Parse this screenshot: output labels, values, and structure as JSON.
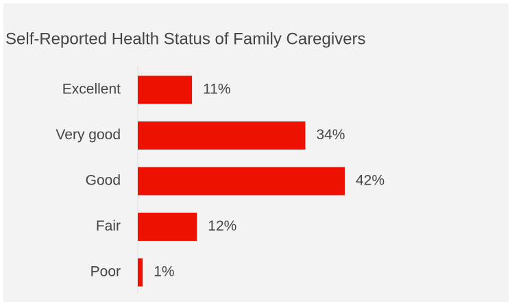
{
  "chart_data": {
    "type": "bar",
    "orientation": "horizontal",
    "title": "Self-Reported Health Status of Family Caregivers",
    "categories": [
      "Excellent",
      "Very good",
      "Good",
      "Fair",
      "Poor"
    ],
    "values": [
      11,
      34,
      42,
      12,
      1
    ],
    "value_labels": [
      "11%",
      "34%",
      "42%",
      "12%",
      "1%"
    ],
    "color": "#ee1100"
  }
}
